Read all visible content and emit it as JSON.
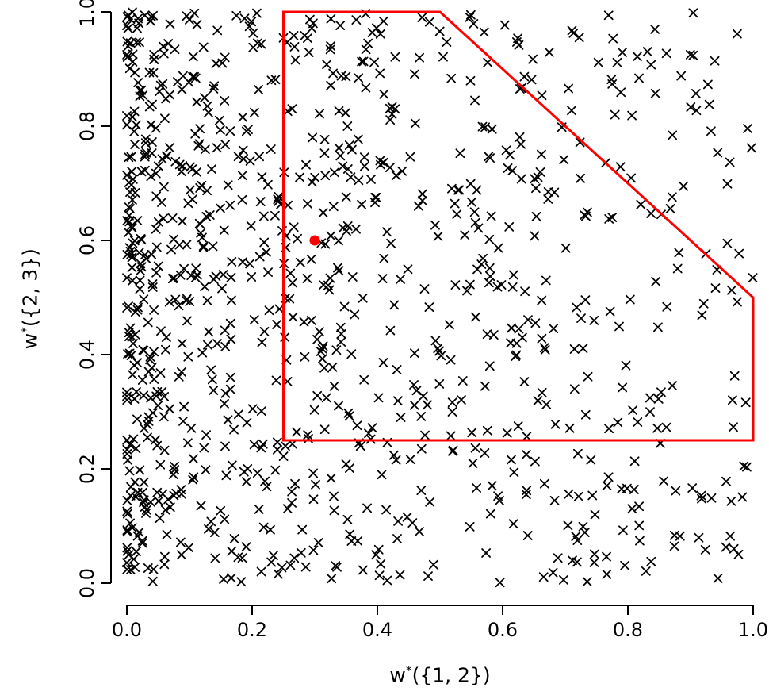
{
  "chart_data": {
    "type": "scatter",
    "title": "",
    "xlabel": "w*({1, 2})",
    "xlabel_parts": {
      "base": "w",
      "sup": "*",
      "rest": "({1, 2})"
    },
    "ylabel": "w*({2, 3})",
    "ylabel_parts": {
      "base": "w",
      "sup": "*",
      "rest": "({2, 3})"
    },
    "xlim": [
      0,
      1
    ],
    "ylim": [
      0,
      1
    ],
    "x_tick_values": [
      0.0,
      0.2,
      0.4,
      0.6,
      0.8,
      1.0
    ],
    "x_tick_labels": [
      "0.0",
      "0.2",
      "0.4",
      "0.6",
      "0.8",
      "1.0"
    ],
    "y_tick_values": [
      0.0,
      0.2,
      0.4,
      0.6,
      0.8,
      1.0
    ],
    "y_tick_labels": [
      "0.0",
      "0.2",
      "0.4",
      "0.6",
      "0.8",
      "1.0"
    ],
    "grid": false,
    "legend": false,
    "marker": "x",
    "marker_color": "#000000",
    "marker_size": 10,
    "scatter_generator": {
      "count": 1000,
      "seed": 7,
      "x_distribution": "pow",
      "x_exponent": 1.8,
      "y_distribution": "uniform",
      "note": "Approximately 1000 black x-cross markers filling the unit square, visibly denser toward small x (left side) and roughly uniform in y; regenerated deterministically from seed."
    },
    "polygon": {
      "label": "feasible-region-outline",
      "color": "#ff0000",
      "stroke_width": 3,
      "closed": true,
      "vertices": [
        [
          0.25,
          1.0
        ],
        [
          0.5,
          1.0
        ],
        [
          1.0,
          0.5
        ],
        [
          1.0,
          0.25
        ],
        [
          0.25,
          0.25
        ]
      ]
    },
    "highlight_point": {
      "x": 0.3,
      "y": 0.6,
      "color": "#ff0000",
      "radius": 6.5
    }
  },
  "colors": {
    "background": "#ffffff",
    "axis": "#000000",
    "accent_red": "#ff0000"
  }
}
